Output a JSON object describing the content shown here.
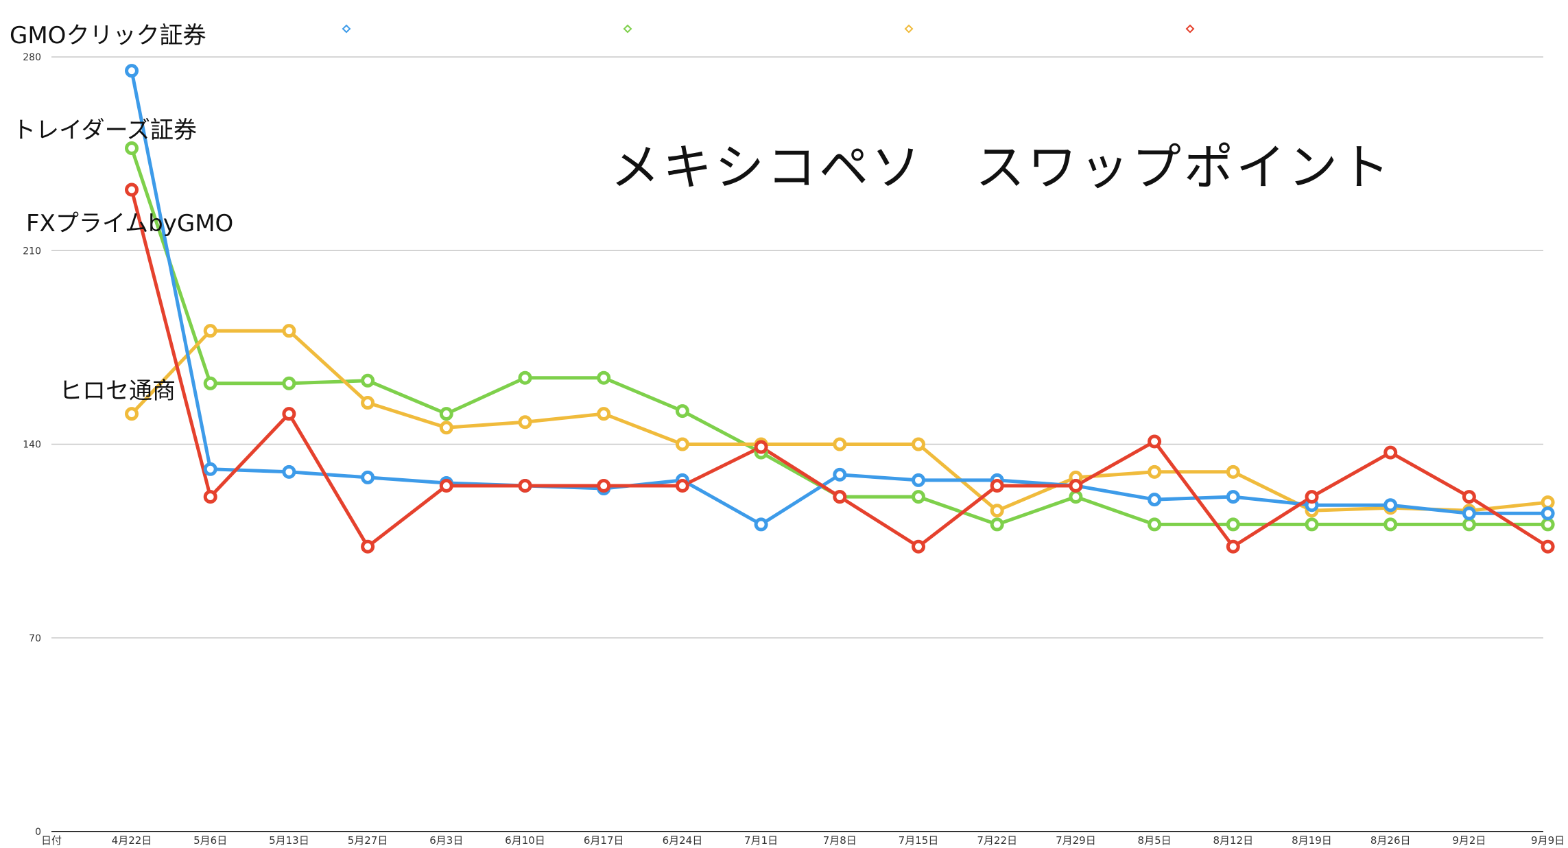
{
  "chart_data": {
    "type": "line",
    "title": "メキシコペソ　スワップポイント",
    "x_axis_label": "日付",
    "categories": [
      "4月22日",
      "5月6日",
      "5月13日",
      "5月27日",
      "6月3日",
      "6月10日",
      "6月17日",
      "6月24日",
      "7月1日",
      "7月8日",
      "7月15日",
      "7月22日",
      "7月29日",
      "8月5日",
      "8月12日",
      "8月19日",
      "8月26日",
      "9月2日",
      "9月9日"
    ],
    "ylim": [
      0,
      280
    ],
    "yticks": [
      0,
      70,
      140,
      210,
      280
    ],
    "grid": true,
    "legend": "top (markers only)",
    "series": [
      {
        "name": "GMOクリック証券",
        "color": "#3d9be9",
        "values": [
          275,
          131,
          130,
          128,
          126,
          125,
          124,
          127,
          111,
          129,
          127,
          127,
          125,
          120,
          121,
          118,
          118,
          115,
          115
        ]
      },
      {
        "name": "トレイダーズ証券",
        "color": "#7ed04b",
        "values": [
          247,
          162,
          162,
          163,
          151,
          164,
          164,
          152,
          137,
          121,
          121,
          111,
          121,
          111,
          111,
          111,
          111,
          111,
          111
        ]
      },
      {
        "name": "ヒロセ通商",
        "color": "#f0bb3c",
        "values": [
          151,
          181,
          181,
          155,
          146,
          148,
          151,
          140,
          140,
          140,
          140,
          116,
          128,
          130,
          130,
          116,
          117,
          116,
          119
        ]
      },
      {
        "name": "FXプライムbyGMO",
        "color": "#e5412d",
        "values": [
          232,
          121,
          151,
          103,
          125,
          125,
          125,
          125,
          139,
          121,
          103,
          125,
          125,
          141,
          103,
          121,
          137,
          121,
          103
        ]
      }
    ]
  }
}
